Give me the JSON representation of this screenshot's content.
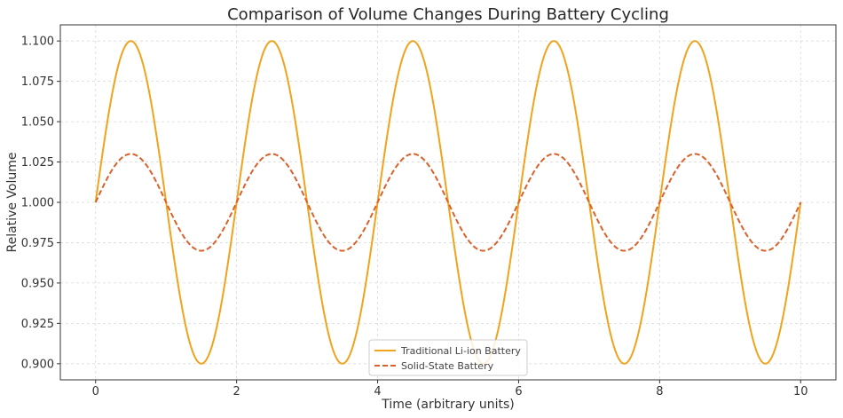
{
  "chart_data": {
    "type": "line",
    "title": "Comparison of Volume Changes During Battery Cycling",
    "xlabel": "Time (arbitrary units)",
    "ylabel": "Relative Volume",
    "xlim": [
      -0.5,
      10.5
    ],
    "ylim": [
      0.89,
      1.11
    ],
    "xticks": [
      0,
      2,
      4,
      6,
      8,
      10
    ],
    "xtick_labels": [
      "0",
      "2",
      "4",
      "6",
      "8",
      "10"
    ],
    "yticks": [
      0.9,
      0.925,
      0.95,
      0.975,
      1.0,
      1.025,
      1.05,
      1.075,
      1.1
    ],
    "ytick_labels": [
      "0.900",
      "0.925",
      "0.950",
      "0.975",
      "1.000",
      "1.025",
      "1.050",
      "1.075",
      "1.100"
    ],
    "grid": true,
    "legend_position": "bottom-center",
    "x_range": [
      0,
      10
    ],
    "series": [
      {
        "name": "Traditional Li-ion Battery",
        "function": "1 + 0.1*sin(pi*x)",
        "baseline": 1.0,
        "amplitude": 0.1,
        "period": 2,
        "color": "#f0a31c",
        "style": "solid"
      },
      {
        "name": "Solid-State Battery",
        "function": "1 + 0.03*sin(pi*x)",
        "baseline": 1.0,
        "amplitude": 0.03,
        "period": 2,
        "color": "#d9622b",
        "style": "dashed"
      }
    ]
  }
}
